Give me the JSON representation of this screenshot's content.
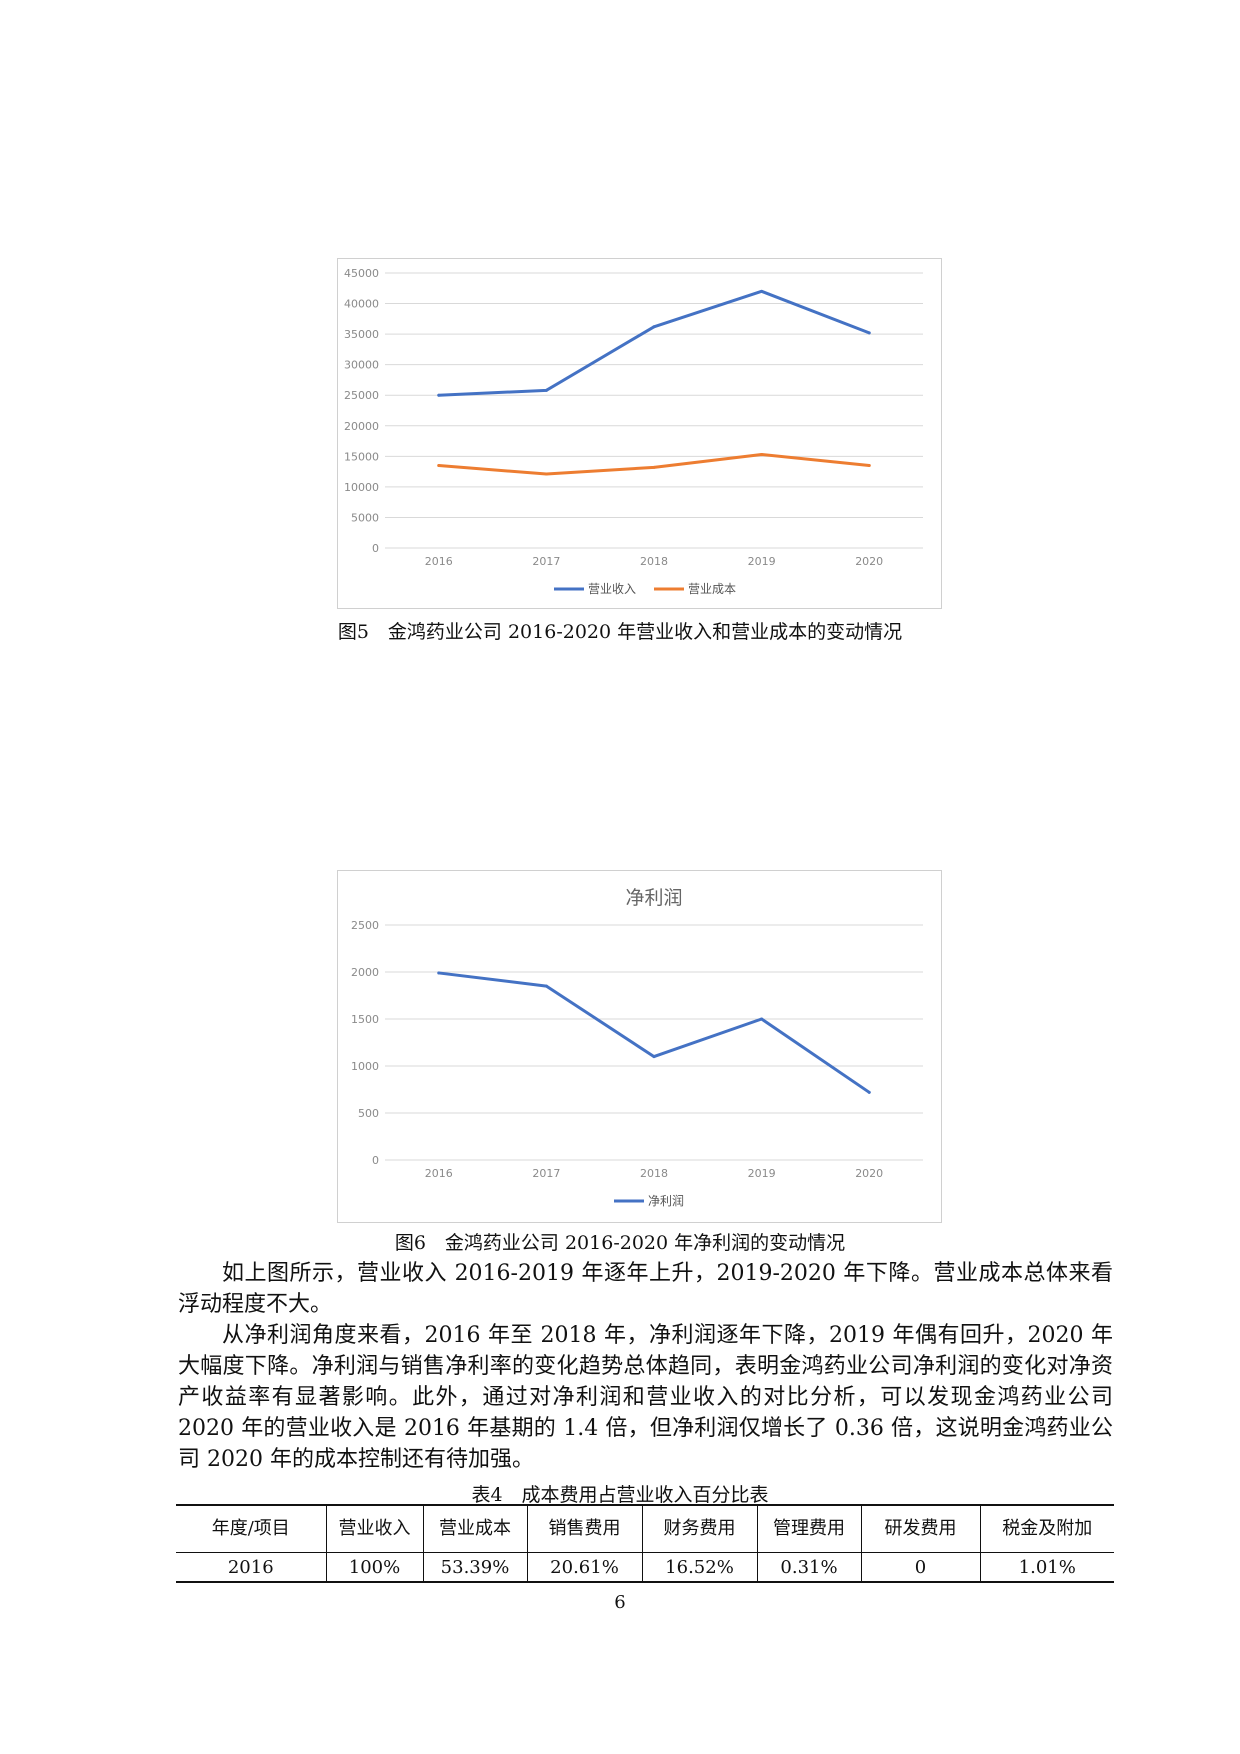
{
  "figure5": {
    "caption": "图5　金鸿药业公司 2016-2020 年营业收入和营业成本的变动情况"
  },
  "figure6": {
    "caption": "图6　金鸿药业公司 2016-2020 年净利润的变动情况"
  },
  "chart_data": [
    {
      "type": "line",
      "title": "",
      "categories": [
        "2016",
        "2017",
        "2018",
        "2019",
        "2020"
      ],
      "y_ticks": [
        "0",
        "5000",
        "10000",
        "15000",
        "20000",
        "25000",
        "30000",
        "35000",
        "40000",
        "45000"
      ],
      "ylim": [
        0,
        45000
      ],
      "grid": true,
      "legend": "bottom",
      "series": [
        {
          "name": "营业收入",
          "color": "#4472c4",
          "values": [
            25000,
            25800,
            36200,
            42000,
            35200
          ]
        },
        {
          "name": "营业成本",
          "color": "#ed7d31",
          "values": [
            13500,
            12100,
            13200,
            15300,
            13500
          ]
        }
      ]
    },
    {
      "type": "line",
      "title": "净利润",
      "categories": [
        "2016",
        "2017",
        "2018",
        "2019",
        "2020"
      ],
      "y_ticks": [
        "0",
        "500",
        "1000",
        "1500",
        "2000",
        "2500"
      ],
      "ylim": [
        0,
        2500
      ],
      "grid": true,
      "legend": "bottom",
      "series": [
        {
          "name": "净利润",
          "color": "#4472c4",
          "values": [
            1990,
            1850,
            1100,
            1500,
            720
          ]
        }
      ]
    }
  ],
  "paragraphs": [
    "如上图所示，营业收入 2016-2019 年逐年上升，2019-2020 年下降。营业成本总体来看浮动程度不大。",
    "从净利润角度来看，2016 年至 2018 年，净利润逐年下降，2019 年偶有回升，2020 年大幅度下降。净利润与销售净利率的变化趋势总体趋同，表明金鸿药业公司净利润的变化对净资产收益率有显著影响。此外，通过对净利润和营业收入的对比分析，可以发现金鸿药业公司 2020 年的营业收入是 2016 年基期的 1.4 倍，但净利润仅增长了 0.36 倍，这说明金鸿药业公司 2020 年的成本控制还有待加强。"
  ],
  "table4": {
    "caption": "表4　成本费用占营业收入百分比表",
    "headers": [
      "年度/项目",
      "营业收入",
      "营业成本",
      "销售费用",
      "财务费用",
      "管理费用",
      "研发费用",
      "税金及附加"
    ],
    "rows": [
      [
        "2016",
        "100%",
        "53.39%",
        "20.61%",
        "16.52%",
        "0.31%",
        "0",
        "1.01%"
      ]
    ]
  },
  "page_number": "6"
}
